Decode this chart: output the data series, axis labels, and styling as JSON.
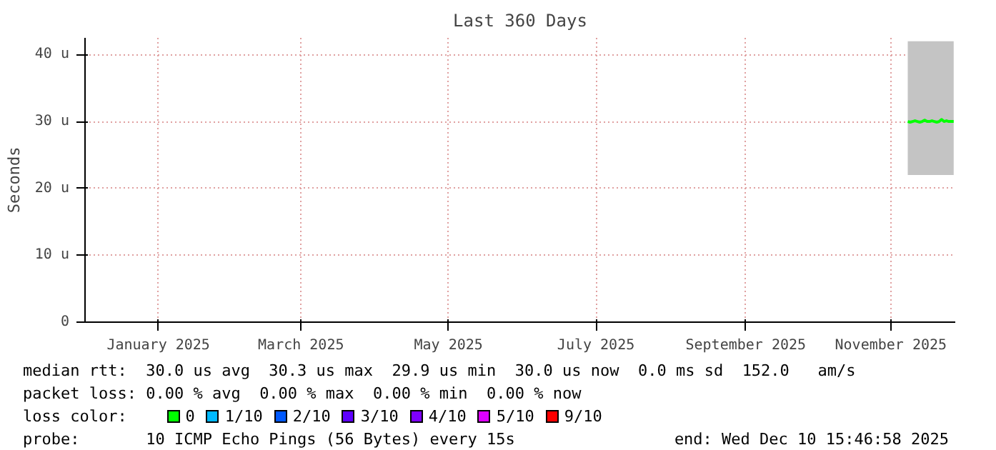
{
  "chart_data": {
    "type": "line",
    "title": "Last 360 Days",
    "ylabel": "Seconds",
    "x": [
      "2025-11-21",
      "2025-11-22",
      "2025-11-23",
      "2025-11-24",
      "2025-11-25",
      "2025-11-26",
      "2025-11-27",
      "2025-11-28",
      "2025-11-29",
      "2025-11-30",
      "2025-12-01",
      "2025-12-02",
      "2025-12-03",
      "2025-12-04",
      "2025-12-05",
      "2025-12-06",
      "2025-12-07",
      "2025-12-08",
      "2025-12-09",
      "2025-12-10"
    ],
    "series": [
      {
        "name": "0",
        "color": "#00ff00",
        "values": [
          30.0,
          29.9,
          30.0,
          30.1,
          30.0,
          29.9,
          30.0,
          30.2,
          30.0,
          30.0,
          30.1,
          30.0,
          29.9,
          30.0,
          30.3,
          30.0,
          30.1,
          30.0,
          30.0,
          30.0
        ],
        "lower": [
          22,
          22,
          22,
          22,
          22,
          22,
          22,
          22,
          22,
          22,
          22,
          22,
          22,
          22,
          22,
          22,
          22,
          22,
          22,
          22
        ],
        "upper": [
          42,
          42,
          42,
          42,
          42,
          42,
          42,
          42,
          42,
          42,
          42,
          42,
          42,
          42,
          42,
          42,
          42,
          42,
          42,
          42
        ]
      },
      {
        "name": "1/10",
        "color": "#00b8ff",
        "values": [
          null,
          null,
          null,
          null,
          null,
          null,
          null,
          null,
          null,
          null,
          null,
          null,
          null,
          null,
          null,
          null,
          null,
          null,
          null,
          null
        ]
      },
      {
        "name": "2/10",
        "color": "#0059ff",
        "values": [
          null,
          null,
          null,
          null,
          null,
          null,
          null,
          null,
          null,
          null,
          null,
          null,
          null,
          null,
          null,
          null,
          null,
          null,
          null,
          null
        ]
      },
      {
        "name": "3/10",
        "color": "#5e00ff",
        "values": [
          null,
          null,
          null,
          null,
          null,
          null,
          null,
          null,
          null,
          null,
          null,
          null,
          null,
          null,
          null,
          null,
          null,
          null,
          null,
          null
        ]
      },
      {
        "name": "4/10",
        "color": "#7e00ff",
        "values": [
          null,
          null,
          null,
          null,
          null,
          null,
          null,
          null,
          null,
          null,
          null,
          null,
          null,
          null,
          null,
          null,
          null,
          null,
          null,
          null
        ]
      },
      {
        "name": "5/10",
        "color": "#dd00ff",
        "values": [
          null,
          null,
          null,
          null,
          null,
          null,
          null,
          null,
          null,
          null,
          null,
          null,
          null,
          null,
          null,
          null,
          null,
          null,
          null,
          null
        ]
      },
      {
        "name": "9/10",
        "color": "#ff0000",
        "values": [
          null,
          null,
          null,
          null,
          null,
          null,
          null,
          null,
          null,
          null,
          null,
          null,
          null,
          null,
          null,
          null,
          null,
          null,
          null,
          null
        ]
      }
    ],
    "legend_title": "loss color:",
    "legend": "bottom",
    "xlim": [
      "2024-12-15T15:46",
      "2025-12-10T15:46"
    ],
    "xticks": [
      {
        "value": "2025-01-15",
        "label": "January 2025"
      },
      {
        "value": "2025-03-15",
        "label": "March 2025"
      },
      {
        "value": "2025-05-15",
        "label": "May 2025"
      },
      {
        "value": "2025-07-15",
        "label": "July 2025"
      },
      {
        "value": "2025-09-15",
        "label": "September 2025"
      },
      {
        "value": "2025-11-14",
        "label": "November 2025"
      }
    ],
    "ylim": [
      0,
      42.5
    ],
    "yticks": [
      {
        "value": 0,
        "label": "0"
      },
      {
        "value": 10,
        "label": "10 u"
      },
      {
        "value": 20,
        "label": "20 u"
      },
      {
        "value": 30,
        "label": "30 u"
      },
      {
        "value": 40,
        "label": "40 u"
      }
    ],
    "grid": true,
    "line_style": "solid",
    "marker": "none",
    "annotations": [
      "median rtt:  30.0 us avg  30.3 us max  29.9 us min  30.0 us now  0.0 ms sd  152.0   am/s",
      "packet loss: 0.00 % avg  0.00 % max  0.00 % min  0.00 % now",
      "probe:       10 ICMP Echo Pings (56 Bytes) every 15s",
      "end: Wed Dec 10 15:46:58 2025"
    ]
  }
}
